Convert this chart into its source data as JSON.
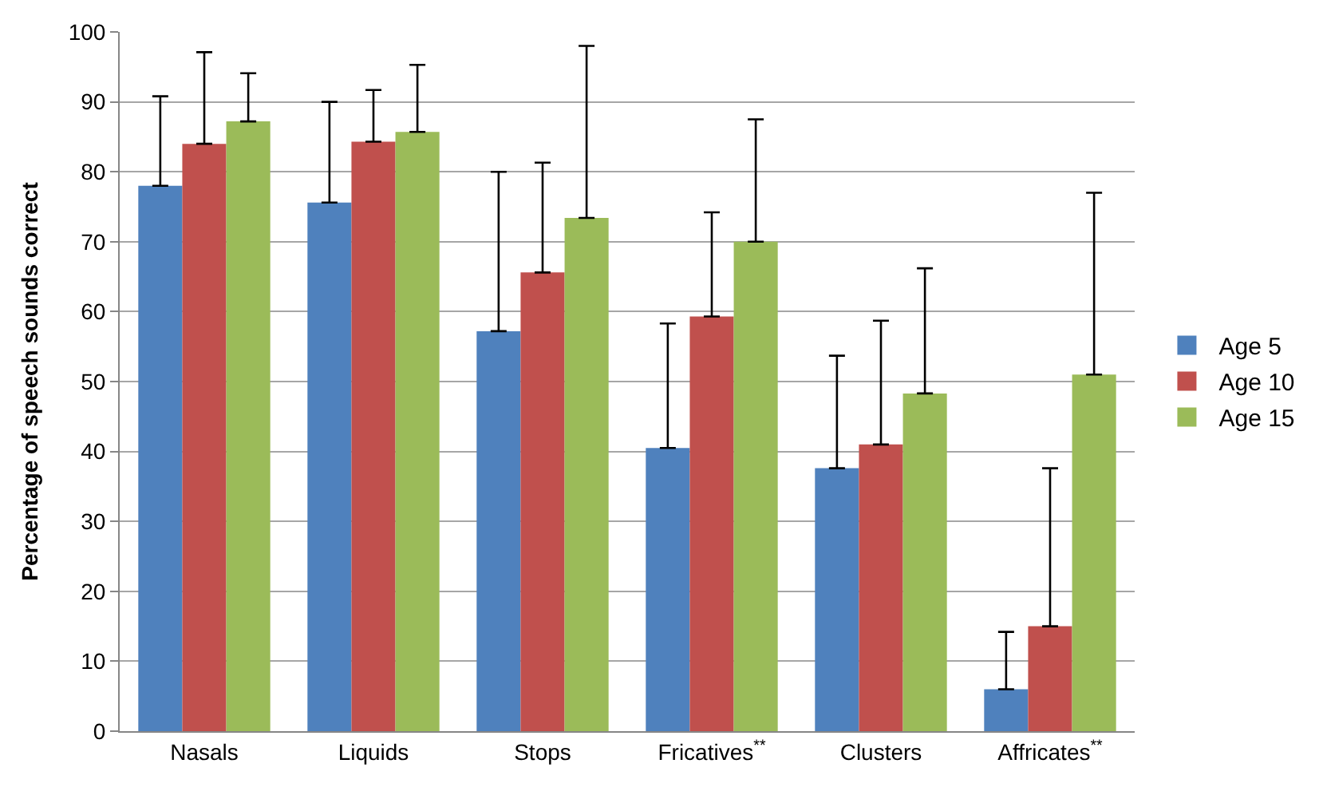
{
  "chart_data": {
    "type": "bar",
    "ylabel": "Percentage of speech sounds correct",
    "categories": [
      "Nasals",
      "Liquids",
      "Stops",
      "Fricatives$^{**}$",
      "Clusters",
      "Affricates$^{**}$"
    ],
    "series": [
      {
        "name": "Age 5",
        "color": "#4f81bd",
        "values": [
          78,
          75.6,
          57.2,
          40.5,
          37.6,
          6
        ],
        "errors": [
          [
            78,
            90.8
          ],
          [
            75.6,
            90
          ],
          [
            57.2,
            80
          ],
          [
            40.5,
            58.3
          ],
          [
            37.6,
            53.7
          ],
          [
            6,
            14.2
          ]
        ]
      },
      {
        "name": "Age 10",
        "color": "#c0504d",
        "values": [
          84,
          84.3,
          65.6,
          59.3,
          41,
          15
        ],
        "errors": [
          [
            84,
            97.1
          ],
          [
            84.3,
            91.7
          ],
          [
            65.6,
            81.3
          ],
          [
            59.3,
            74.2
          ],
          [
            41,
            58.7
          ],
          [
            15,
            37.6
          ]
        ]
      },
      {
        "name": "Age 15",
        "color": "#9bbb59",
        "values": [
          87.2,
          85.7,
          73.4,
          70,
          48.3,
          51
        ],
        "errors": [
          [
            87.2,
            94.1
          ],
          [
            85.7,
            95.3
          ],
          [
            73.4,
            98
          ],
          [
            70,
            87.5
          ],
          [
            48.3,
            66.2
          ],
          [
            51,
            77
          ]
        ]
      }
    ],
    "ylim": [
      0,
      100
    ],
    "yticks": [
      0,
      10,
      20,
      30,
      40,
      50,
      60,
      70,
      80,
      90,
      100
    ],
    "grid": "y",
    "legend": "right"
  }
}
